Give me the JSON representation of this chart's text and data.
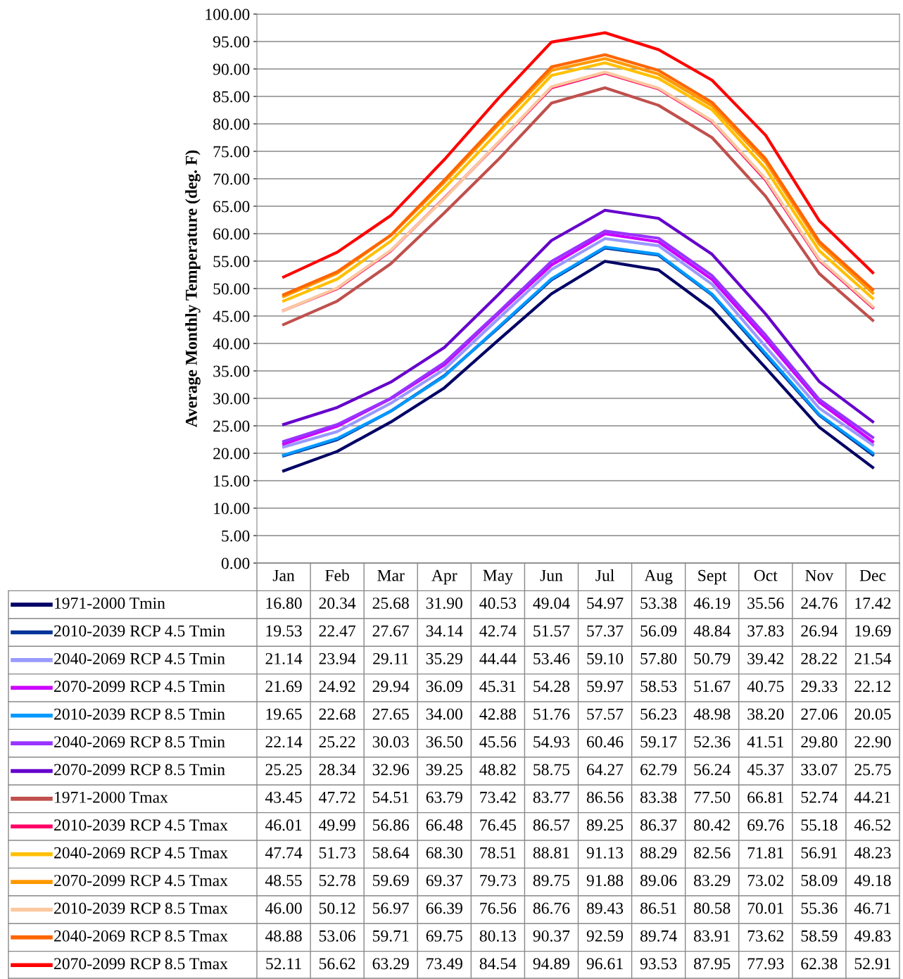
{
  "chart_data": {
    "type": "line",
    "ylabel": "Average Monthly Temperature (deg. F)",
    "categories": [
      "Jan",
      "Feb",
      "Mar",
      "Apr",
      "May",
      "Jun",
      "Jul",
      "Aug",
      "Sept",
      "Oct",
      "Nov",
      "Dec"
    ],
    "ylim": [
      0,
      100
    ],
    "yticks": [
      {
        "value": 0,
        "label": "0.00"
      },
      {
        "value": 5,
        "label": "5.00"
      },
      {
        "value": 10,
        "label": "10.00"
      },
      {
        "value": 15,
        "label": "15.00"
      },
      {
        "value": 20,
        "label": "20.00"
      },
      {
        "value": 25,
        "label": "25.00"
      },
      {
        "value": 30,
        "label": "30.00"
      },
      {
        "value": 35,
        "label": "35.00"
      },
      {
        "value": 40,
        "label": "40.00"
      },
      {
        "value": 45,
        "label": "45.00"
      },
      {
        "value": 50,
        "label": "50.00"
      },
      {
        "value": 55,
        "label": "55.00"
      },
      {
        "value": 60,
        "label": "60.00"
      },
      {
        "value": 65,
        "label": "65.00"
      },
      {
        "value": 70,
        "label": "70.00"
      },
      {
        "value": 75,
        "label": "75.00"
      },
      {
        "value": 80,
        "label": "80.00"
      },
      {
        "value": 85,
        "label": "85.00"
      },
      {
        "value": 90,
        "label": "90.00"
      },
      {
        "value": 95,
        "label": "95.00"
      },
      {
        "value": 100,
        "label": "100.00"
      }
    ],
    "grid": "y",
    "legend": "bottom",
    "marker": "none",
    "line_style": "solid",
    "series": [
      {
        "name": "1971-2000 Tmin",
        "color": "#000066",
        "values": [
          16.8,
          20.34,
          25.68,
          31.9,
          40.53,
          49.04,
          54.97,
          53.38,
          46.19,
          35.56,
          24.76,
          17.42
        ],
        "value_labels": [
          "16.80",
          "20.34",
          "25.68",
          "31.90",
          "40.53",
          "49.04",
          "54.97",
          "53.38",
          "46.19",
          "35.56",
          "24.76",
          "17.42"
        ]
      },
      {
        "name": "2010-2039 RCP 4.5 Tmin",
        "color": "#003399",
        "values": [
          19.53,
          22.47,
          27.67,
          34.14,
          42.74,
          51.57,
          57.37,
          56.09,
          48.84,
          37.83,
          26.94,
          19.69
        ],
        "value_labels": [
          "19.53",
          "22.47",
          "27.67",
          "34.14",
          "42.74",
          "51.57",
          "57.37",
          "56.09",
          "48.84",
          "37.83",
          "26.94",
          "19.69"
        ]
      },
      {
        "name": "2040-2069 RCP 4.5 Tmin",
        "color": "#9999ff",
        "values": [
          21.14,
          23.94,
          29.11,
          35.29,
          44.44,
          53.46,
          59.1,
          57.8,
          50.79,
          39.42,
          28.22,
          21.54
        ],
        "value_labels": [
          "21.14",
          "23.94",
          "29.11",
          "35.29",
          "44.44",
          "53.46",
          "59.10",
          "57.80",
          "50.79",
          "39.42",
          "28.22",
          "21.54"
        ]
      },
      {
        "name": "2070-2099 RCP 4.5 Tmin",
        "color": "#cc00ff",
        "values": [
          21.69,
          24.92,
          29.94,
          36.09,
          45.31,
          54.28,
          59.97,
          58.53,
          51.67,
          40.75,
          29.33,
          22.12
        ],
        "value_labels": [
          "21.69",
          "24.92",
          "29.94",
          "36.09",
          "45.31",
          "54.28",
          "59.97",
          "58.53",
          "51.67",
          "40.75",
          "29.33",
          "22.12"
        ]
      },
      {
        "name": "2010-2039 RCP 8.5 Tmin",
        "color": "#0099ff",
        "values": [
          19.65,
          22.68,
          27.65,
          34.0,
          42.88,
          51.76,
          57.57,
          56.23,
          48.98,
          38.2,
          27.06,
          20.05
        ],
        "value_labels": [
          "19.65",
          "22.68",
          "27.65",
          "34.00",
          "42.88",
          "51.76",
          "57.57",
          "56.23",
          "48.98",
          "38.20",
          "27.06",
          "20.05"
        ]
      },
      {
        "name": "2040-2069 RCP 8.5 Tmin",
        "color": "#9933ff",
        "values": [
          22.14,
          25.22,
          30.03,
          36.5,
          45.56,
          54.93,
          60.46,
          59.17,
          52.36,
          41.51,
          29.8,
          22.9
        ],
        "value_labels": [
          "22.14",
          "25.22",
          "30.03",
          "36.50",
          "45.56",
          "54.93",
          "60.46",
          "59.17",
          "52.36",
          "41.51",
          "29.80",
          "22.90"
        ]
      },
      {
        "name": "2070-2099 RCP 8.5 Tmin",
        "color": "#6600cc",
        "values": [
          25.25,
          28.34,
          32.96,
          39.25,
          48.82,
          58.75,
          64.27,
          62.79,
          56.24,
          45.37,
          33.07,
          25.75
        ],
        "value_labels": [
          "25.25",
          "28.34",
          "32.96",
          "39.25",
          "48.82",
          "58.75",
          "64.27",
          "62.79",
          "56.24",
          "45.37",
          "33.07",
          "25.75"
        ]
      },
      {
        "name": "1971-2000 Tmax",
        "color": "#c0504d",
        "values": [
          43.45,
          47.72,
          54.51,
          63.79,
          73.42,
          83.77,
          86.56,
          83.38,
          77.5,
          66.81,
          52.74,
          44.21
        ],
        "value_labels": [
          "43.45",
          "47.72",
          "54.51",
          "63.79",
          "73.42",
          "83.77",
          "86.56",
          "83.38",
          "77.50",
          "66.81",
          "52.74",
          "44.21"
        ]
      },
      {
        "name": "2010-2039 RCP 4.5 Tmax",
        "color": "#ff0066",
        "values": [
          46.01,
          49.99,
          56.86,
          66.48,
          76.45,
          86.57,
          89.25,
          86.37,
          80.42,
          69.76,
          55.18,
          46.52
        ],
        "value_labels": [
          "46.01",
          "49.99",
          "56.86",
          "66.48",
          "76.45",
          "86.57",
          "89.25",
          "86.37",
          "80.42",
          "69.76",
          "55.18",
          "46.52"
        ]
      },
      {
        "name": "2040-2069 RCP 4.5 Tmax",
        "color": "#ffc000",
        "values": [
          47.74,
          51.73,
          58.64,
          68.3,
          78.51,
          88.81,
          91.13,
          88.29,
          82.56,
          71.81,
          56.91,
          48.23
        ],
        "value_labels": [
          "47.74",
          "51.73",
          "58.64",
          "68.30",
          "78.51",
          "88.81",
          "91.13",
          "88.29",
          "82.56",
          "71.81",
          "56.91",
          "48.23"
        ]
      },
      {
        "name": "2070-2099 RCP 4.5 Tmax",
        "color": "#ff9900",
        "values": [
          48.55,
          52.78,
          59.69,
          69.37,
          79.73,
          89.75,
          91.88,
          89.06,
          83.29,
          73.02,
          58.09,
          49.18
        ],
        "value_labels": [
          "48.55",
          "52.78",
          "59.69",
          "69.37",
          "79.73",
          "89.75",
          "91.88",
          "89.06",
          "83.29",
          "73.02",
          "58.09",
          "49.18"
        ]
      },
      {
        "name": "2010-2039 RCP 8.5 Tmax",
        "color": "#fbc8a0",
        "values": [
          46.0,
          50.12,
          56.97,
          66.39,
          76.56,
          86.76,
          89.43,
          86.51,
          80.58,
          70.01,
          55.36,
          46.71
        ],
        "value_labels": [
          "46.00",
          "50.12",
          "56.97",
          "66.39",
          "76.56",
          "86.76",
          "89.43",
          "86.51",
          "80.58",
          "70.01",
          "55.36",
          "46.71"
        ]
      },
      {
        "name": "2040-2069 RCP 8.5 Tmax",
        "color": "#ff6600",
        "values": [
          48.88,
          53.06,
          59.71,
          69.75,
          80.13,
          90.37,
          92.59,
          89.74,
          83.91,
          73.62,
          58.59,
          49.83
        ],
        "value_labels": [
          "48.88",
          "53.06",
          "59.71",
          "69.75",
          "80.13",
          "90.37",
          "92.59",
          "89.74",
          "83.91",
          "73.62",
          "58.59",
          "49.83"
        ]
      },
      {
        "name": "2070-2099 RCP 8.5 Tmax",
        "color": "#ff0000",
        "values": [
          52.11,
          56.62,
          63.29,
          73.49,
          84.54,
          94.89,
          96.61,
          93.53,
          87.95,
          77.93,
          62.38,
          52.91
        ],
        "value_labels": [
          "52.11",
          "56.62",
          "63.29",
          "73.49",
          "84.54",
          "94.89",
          "96.61",
          "93.53",
          "87.95",
          "77.93",
          "62.38",
          "52.91"
        ]
      }
    ]
  }
}
